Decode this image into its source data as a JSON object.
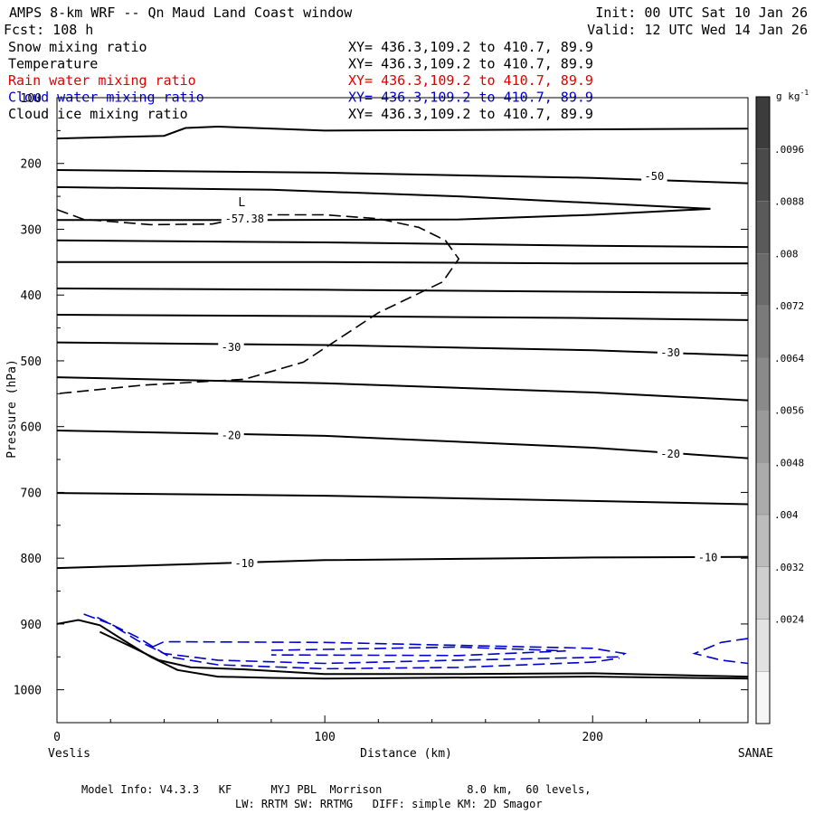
{
  "header": {
    "title": "AMPS 8-km WRF -- Qn Maud Land Coast window",
    "init": "Init: 00 UTC Sat 10 Jan 26",
    "fcst": "Fcst:  108 h",
    "valid": "Valid: 12 UTC Wed 14 Jan 26"
  },
  "fields": [
    {
      "name": "Snow mixing ratio",
      "xy": "XY= 436.3,109.2 to 410.7, 89.9",
      "color": "#000000"
    },
    {
      "name": "Temperature",
      "xy": "XY= 436.3,109.2 to 410.7, 89.9",
      "color": "#000000"
    },
    {
      "name": "Rain water mixing ratio",
      "xy": "XY= 436.3,109.2 to 410.7, 89.9",
      "color": "#e00000"
    },
    {
      "name": "Cloud water mixing ratio",
      "xy": "XY= 436.3,109.2 to 410.7, 89.9",
      "color": "#0000cc"
    },
    {
      "name": "Cloud ice mixing ratio",
      "xy": "XY= 436.3,109.2 to 410.7, 89.9",
      "color": "#000000"
    }
  ],
  "footer": {
    "line1": "Model Info: V4.3.3   KF      MYJ PBL  Morrison             8.0 km,  60 levels,",
    "line2": "LW: RRTM SW: RRTMG   DIFF: simple KM: 2D Smagor"
  },
  "chart_data": {
    "type": "cross-section",
    "xlabel": "Distance (km)",
    "ylabel": "Pressure (hPa)",
    "xlim": [
      0,
      258
    ],
    "ylim": [
      1050,
      100
    ],
    "x_ticks": [
      0,
      100,
      200
    ],
    "y_ticks": [
      100,
      200,
      300,
      400,
      500,
      600,
      700,
      800,
      900,
      1000
    ],
    "left_endpoint": "Veslis",
    "right_endpoint": "SANAE",
    "colorbar": {
      "units": "g kg",
      "units_exp": "-1",
      "labels": [
        ".0096",
        ".0088",
        ".008",
        ".0072",
        ".0064",
        ".0056",
        ".0048",
        ".004",
        ".0032",
        ".0024"
      ],
      "colors": [
        "#3c3c3c",
        "#4a4a4a",
        "#5a5a5a",
        "#6a6a6a",
        "#7a7a7a",
        "#8a8a8a",
        "#9a9a9a",
        "#ababab",
        "#bcbcbc",
        "#cfcfcf",
        "#e2e2e2",
        "#f6f6f6"
      ]
    },
    "temperature_contours": [
      {
        "points": [
          [
            0,
            162
          ],
          [
            40,
            158
          ],
          [
            48,
            146
          ],
          [
            60,
            144
          ],
          [
            100,
            150
          ],
          [
            258,
            147
          ]
        ]
      },
      {
        "points": [
          [
            0,
            210
          ],
          [
            100,
            214
          ],
          [
            200,
            222
          ],
          [
            258,
            230
          ]
        ]
      },
      {
        "points": [
          [
            0,
            236
          ],
          [
            80,
            240
          ],
          [
            150,
            250
          ],
          [
            200,
            260
          ],
          [
            244,
            269
          ]
        ]
      },
      {
        "points": [
          [
            0,
            286
          ],
          [
            80,
            286
          ],
          [
            150,
            285
          ],
          [
            200,
            278
          ],
          [
            244,
            269
          ]
        ]
      },
      {
        "points": [
          [
            0,
            317
          ],
          [
            100,
            320
          ],
          [
            200,
            325
          ],
          [
            258,
            327
          ]
        ]
      },
      {
        "points": [
          [
            0,
            350
          ],
          [
            100,
            350
          ],
          [
            200,
            352
          ],
          [
            258,
            352
          ]
        ]
      },
      {
        "points": [
          [
            0,
            390
          ],
          [
            100,
            392
          ],
          [
            200,
            395
          ],
          [
            258,
            397
          ]
        ]
      },
      {
        "points": [
          [
            0,
            430
          ],
          [
            100,
            432
          ],
          [
            200,
            435
          ],
          [
            258,
            438
          ]
        ]
      },
      {
        "points": [
          [
            0,
            472
          ],
          [
            100,
            476
          ],
          [
            200,
            484
          ],
          [
            258,
            492
          ]
        ]
      },
      {
        "points": [
          [
            0,
            525
          ],
          [
            100,
            534
          ],
          [
            200,
            548
          ],
          [
            258,
            560
          ]
        ]
      },
      {
        "points": [
          [
            0,
            606
          ],
          [
            100,
            614
          ],
          [
            200,
            632
          ],
          [
            258,
            648
          ]
        ]
      },
      {
        "points": [
          [
            0,
            701
          ],
          [
            100,
            705
          ],
          [
            200,
            713
          ],
          [
            258,
            718
          ]
        ]
      },
      {
        "points": [
          [
            0,
            815
          ],
          [
            50,
            809
          ],
          [
            100,
            803
          ],
          [
            200,
            799
          ],
          [
            258,
            798
          ]
        ]
      }
    ],
    "temperature_labels": [
      {
        "text": "-50",
        "x": 223,
        "p": 218
      },
      {
        "text": "-57.38",
        "x": 70,
        "p": 283
      },
      {
        "text": "-30",
        "x": 65,
        "p": 478
      },
      {
        "text": "-30",
        "x": 229,
        "p": 486
      },
      {
        "text": "-20",
        "x": 65,
        "p": 612
      },
      {
        "text": "-20",
        "x": 229,
        "p": 640
      },
      {
        "text": "-10",
        "x": 70,
        "p": 807
      },
      {
        "text": "-10",
        "x": 243,
        "p": 798
      }
    ],
    "minimum_marker": {
      "text": "L",
      "x": 69,
      "p": 265
    },
    "tropopause_dashed": {
      "points": [
        [
          0,
          270
        ],
        [
          10,
          285
        ],
        [
          35,
          293
        ],
        [
          58,
          292
        ],
        [
          75,
          278
        ],
        [
          100,
          278
        ],
        [
          120,
          284
        ],
        [
          135,
          297
        ],
        [
          145,
          317
        ],
        [
          150,
          345
        ],
        [
          144,
          380
        ],
        [
          120,
          427
        ],
        [
          92,
          502
        ],
        [
          70,
          528
        ],
        [
          32,
          537
        ],
        [
          0,
          550
        ]
      ]
    },
    "terrain_lines": [
      {
        "points": [
          [
            0,
            900
          ],
          [
            8,
            894
          ],
          [
            16,
            902
          ],
          [
            25,
            925
          ],
          [
            35,
            950
          ],
          [
            45,
            970
          ],
          [
            60,
            980
          ],
          [
            80,
            982
          ],
          [
            100,
            983
          ],
          [
            200,
            980
          ],
          [
            258,
            983
          ]
        ]
      },
      {
        "points": [
          [
            16,
            912
          ],
          [
            28,
            935
          ],
          [
            38,
            955
          ],
          [
            50,
            966
          ],
          [
            70,
            969
          ],
          [
            100,
            976
          ],
          [
            150,
            976
          ],
          [
            200,
            975
          ],
          [
            258,
            980
          ]
        ]
      }
    ],
    "cloud_water_dashed": [
      {
        "points": [
          [
            10,
            885
          ],
          [
            20,
            900
          ],
          [
            30,
            925
          ],
          [
            40,
            945
          ],
          [
            60,
            955
          ],
          [
            100,
            960
          ],
          [
            150,
            955
          ],
          [
            210,
            950
          ],
          [
            212,
            945
          ],
          [
            200,
            937
          ],
          [
            100,
            928
          ],
          [
            40,
            927
          ],
          [
            34,
            938
          ]
        ]
      },
      {
        "points": [
          [
            15,
            890
          ],
          [
            30,
            920
          ],
          [
            42,
            950
          ],
          [
            60,
            962
          ],
          [
            100,
            968
          ],
          [
            150,
            966
          ],
          [
            200,
            958
          ],
          [
            210,
            952
          ]
        ]
      },
      {
        "points": [
          [
            80,
            940
          ],
          [
            150,
            935
          ],
          [
            190,
            941
          ],
          [
            150,
            948
          ],
          [
            80,
            947
          ]
        ]
      },
      {
        "points": [
          [
            258,
            922
          ],
          [
            248,
            928
          ],
          [
            238,
            945
          ],
          [
            248,
            955
          ],
          [
            258,
            960
          ]
        ]
      }
    ]
  }
}
